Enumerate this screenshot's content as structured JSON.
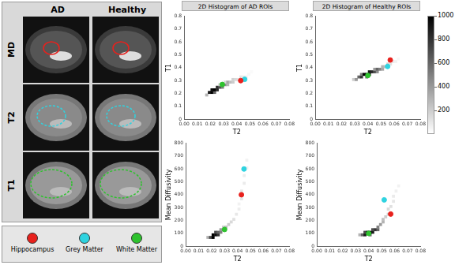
{
  "images": {
    "columns": [
      "AD",
      "Healthy"
    ],
    "rows": [
      {
        "label": "MD",
        "color": "#e8211d"
      },
      {
        "label": "T2",
        "color": "#2fd3e0"
      },
      {
        "label": "T1",
        "color": "#2ec22e"
      }
    ]
  },
  "roi_legend": [
    {
      "name": "Hippocampus",
      "color": "#e8211d"
    },
    {
      "name": "Grey Matter",
      "color": "#2fd3e0"
    },
    {
      "name": "White Matter",
      "color": "#2ec22e"
    }
  ],
  "colorbar": {
    "range": [
      0,
      1000
    ],
    "ticks": [
      200,
      400,
      600,
      800,
      1000
    ]
  },
  "chart_data": [
    {
      "type": "histogram2d",
      "title": "2D Histogram of AD ROIs",
      "x_label": "T2",
      "y_label": "T1",
      "xlim": [
        0,
        0.08
      ],
      "xticks": [
        {
          "value": 0,
          "label": "0.00"
        },
        0.01,
        0.02,
        0.03,
        0.04,
        0.05,
        0.06,
        0.07,
        0.08
      ],
      "ylim": [
        0,
        0.8
      ],
      "yticks": [
        0,
        0.1,
        0.2,
        0.3,
        0.4,
        0.5,
        0.6,
        0.7,
        0.8
      ],
      "grid": false,
      "cell_size": [
        0.002,
        0.02
      ],
      "cells": [
        [
          0.016,
          0.18,
          300
        ],
        [
          0.018,
          0.2,
          900
        ],
        [
          0.02,
          0.2,
          1000
        ],
        [
          0.022,
          0.2,
          600
        ],
        [
          0.02,
          0.22,
          950
        ],
        [
          0.022,
          0.22,
          1000
        ],
        [
          0.024,
          0.22,
          850
        ],
        [
          0.024,
          0.24,
          800
        ],
        [
          0.026,
          0.24,
          700
        ],
        [
          0.028,
          0.24,
          500
        ],
        [
          0.026,
          0.26,
          200
        ],
        [
          0.028,
          0.26,
          550
        ],
        [
          0.03,
          0.26,
          450
        ],
        [
          0.032,
          0.26,
          300
        ],
        [
          0.03,
          0.28,
          150
        ],
        [
          0.032,
          0.28,
          350
        ],
        [
          0.034,
          0.28,
          250
        ],
        [
          0.036,
          0.28,
          200
        ],
        [
          0.036,
          0.3,
          180
        ],
        [
          0.038,
          0.3,
          150
        ],
        [
          0.04,
          0.3,
          120
        ],
        [
          0.042,
          0.32,
          90
        ],
        [
          0.044,
          0.32,
          70
        ],
        [
          0.046,
          0.32,
          50
        ],
        [
          0.048,
          0.34,
          30
        ],
        [
          0.05,
          0.36,
          20
        ]
      ],
      "series": [
        {
          "name": "Hippocampus",
          "color": "#e8211d",
          "x": [
            0.043
          ],
          "values": [
            0.3
          ]
        },
        {
          "name": "Grey Matter",
          "color": "#2fd3e0",
          "x": [
            0.046
          ],
          "values": [
            0.31
          ]
        },
        {
          "name": "White Matter",
          "color": "#2ec22e",
          "x": [
            0.029
          ],
          "values": [
            0.27
          ]
        }
      ]
    },
    {
      "type": "histogram2d",
      "title": "2D Histogram of Healthy ROIs",
      "x_label": "T2",
      "y_label": "T1",
      "xlim": [
        0,
        0.08
      ],
      "xticks": [
        {
          "value": 0,
          "label": "0.00"
        },
        0.01,
        0.02,
        0.03,
        0.04,
        0.05,
        0.06,
        0.07,
        0.08
      ],
      "ylim": [
        0,
        0.8
      ],
      "yticks": [
        0,
        0.1,
        0.2,
        0.3,
        0.4,
        0.5,
        0.6,
        0.7,
        0.8
      ],
      "grid": false,
      "cell_size": [
        0.002,
        0.02
      ],
      "cells": [
        [
          0.028,
          0.3,
          200
        ],
        [
          0.03,
          0.3,
          400
        ],
        [
          0.032,
          0.32,
          600
        ],
        [
          0.034,
          0.32,
          800
        ],
        [
          0.038,
          0.32,
          600
        ],
        [
          0.034,
          0.34,
          500
        ],
        [
          0.036,
          0.34,
          1000
        ],
        [
          0.038,
          0.34,
          1000
        ],
        [
          0.04,
          0.34,
          950
        ],
        [
          0.04,
          0.36,
          900
        ],
        [
          0.042,
          0.36,
          850
        ],
        [
          0.044,
          0.36,
          700
        ],
        [
          0.046,
          0.36,
          450
        ],
        [
          0.044,
          0.38,
          400
        ],
        [
          0.046,
          0.38,
          600
        ],
        [
          0.048,
          0.38,
          500
        ],
        [
          0.05,
          0.38,
          350
        ],
        [
          0.05,
          0.4,
          300
        ],
        [
          0.052,
          0.4,
          250
        ],
        [
          0.054,
          0.42,
          180
        ],
        [
          0.056,
          0.42,
          120
        ],
        [
          0.058,
          0.44,
          80
        ],
        [
          0.06,
          0.44,
          50
        ],
        [
          0.062,
          0.46,
          30
        ]
      ],
      "series": [
        {
          "name": "Hippocampus",
          "color": "#e8211d",
          "x": [
            0.057
          ],
          "values": [
            0.46
          ]
        },
        {
          "name": "Grey Matter",
          "color": "#2fd3e0",
          "x": [
            0.055
          ],
          "values": [
            0.41
          ]
        },
        {
          "name": "White Matter",
          "color": "#2ec22e",
          "x": [
            0.04
          ],
          "values": [
            0.34
          ]
        }
      ]
    },
    {
      "type": "histogram2d",
      "x_label": "T2",
      "y_label": "Mean Diffusivity",
      "xlim": [
        0,
        0.08
      ],
      "xticks": [
        {
          "value": 0,
          "label": "0.00"
        },
        0.01,
        0.02,
        0.03,
        0.04,
        0.05,
        0.06,
        0.07,
        0.08
      ],
      "ylim": [
        0,
        800
      ],
      "yticks": [
        0,
        100,
        200,
        300,
        400,
        500,
        600,
        700,
        800
      ],
      "grid": false,
      "cell_size": [
        0.002,
        20
      ],
      "cells": [
        [
          0.016,
          60,
          300
        ],
        [
          0.018,
          60,
          700
        ],
        [
          0.02,
          60,
          1000
        ],
        [
          0.02,
          80,
          1000
        ],
        [
          0.022,
          80,
          950
        ],
        [
          0.024,
          80,
          800
        ],
        [
          0.022,
          100,
          700
        ],
        [
          0.024,
          100,
          600
        ],
        [
          0.026,
          100,
          500
        ],
        [
          0.026,
          120,
          400
        ],
        [
          0.028,
          120,
          350
        ],
        [
          0.028,
          140,
          200
        ],
        [
          0.03,
          140,
          250
        ],
        [
          0.032,
          160,
          200
        ],
        [
          0.034,
          180,
          150
        ],
        [
          0.036,
          200,
          120
        ],
        [
          0.038,
          240,
          90
        ],
        [
          0.04,
          280,
          70
        ],
        [
          0.04,
          320,
          50
        ],
        [
          0.042,
          360,
          100
        ],
        [
          0.042,
          420,
          90
        ],
        [
          0.044,
          480,
          80
        ],
        [
          0.044,
          540,
          70
        ],
        [
          0.046,
          600,
          60
        ],
        [
          0.046,
          660,
          50
        ]
      ],
      "series": [
        {
          "name": "Hippocampus",
          "color": "#e8211d",
          "x": [
            0.043
          ],
          "values": [
            400
          ]
        },
        {
          "name": "Grey Matter",
          "color": "#2fd3e0",
          "x": [
            0.045
          ],
          "values": [
            600
          ]
        },
        {
          "name": "White Matter",
          "color": "#2ec22e",
          "x": [
            0.03
          ],
          "values": [
            130
          ]
        }
      ]
    },
    {
      "type": "histogram2d",
      "x_label": "T2",
      "y_label": "Mean Diffusivity",
      "xlim": [
        0,
        0.08
      ],
      "xticks": [
        {
          "value": 0,
          "label": "0.00"
        },
        0.01,
        0.02,
        0.03,
        0.04,
        0.05,
        0.06,
        0.07,
        0.08
      ],
      "ylim": [
        0,
        800
      ],
      "yticks": [
        0,
        100,
        200,
        300,
        400,
        500,
        600,
        700,
        800
      ],
      "grid": false,
      "cell_size": [
        0.002,
        20
      ],
      "cells": [
        [
          0.032,
          80,
          300
        ],
        [
          0.034,
          80,
          600
        ],
        [
          0.036,
          80,
          900
        ],
        [
          0.04,
          80,
          600
        ],
        [
          0.036,
          100,
          700
        ],
        [
          0.038,
          100,
          1000
        ],
        [
          0.04,
          100,
          1000
        ],
        [
          0.042,
          100,
          900
        ],
        [
          0.042,
          120,
          700
        ],
        [
          0.044,
          120,
          800
        ],
        [
          0.046,
          120,
          600
        ],
        [
          0.046,
          140,
          500
        ],
        [
          0.048,
          160,
          400
        ],
        [
          0.05,
          180,
          300
        ],
        [
          0.05,
          200,
          250
        ],
        [
          0.052,
          220,
          200
        ],
        [
          0.054,
          240,
          180
        ],
        [
          0.054,
          280,
          150
        ],
        [
          0.056,
          300,
          120
        ],
        [
          0.058,
          340,
          100
        ],
        [
          0.058,
          380,
          80
        ],
        [
          0.06,
          420,
          60
        ],
        [
          0.062,
          460,
          50
        ]
      ],
      "series": [
        {
          "name": "Hippocampus",
          "color": "#e8211d",
          "x": [
            0.057
          ],
          "values": [
            250
          ]
        },
        {
          "name": "Grey Matter",
          "color": "#2fd3e0",
          "x": [
            0.052
          ],
          "values": [
            360
          ]
        },
        {
          "name": "White Matter",
          "color": "#2ec22e",
          "x": [
            0.04
          ],
          "values": [
            100
          ]
        }
      ]
    }
  ]
}
